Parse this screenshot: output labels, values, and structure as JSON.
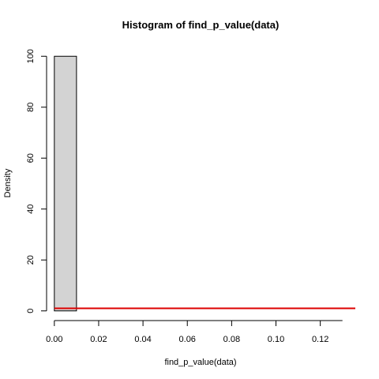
{
  "chart_data": {
    "type": "bar",
    "title": "Histogram of find_p_value(data)",
    "xlabel": "find_p_value(data)",
    "ylabel": "Density",
    "xlim": [
      -0.0035,
      0.1358
    ],
    "ylim": [
      -3.8,
      103.8
    ],
    "x_axis_range": [
      0.0,
      0.13
    ],
    "y_axis_range": [
      0,
      100
    ],
    "x_ticks": [
      "0.00",
      "0.02",
      "0.04",
      "0.06",
      "0.08",
      "0.10",
      "0.12"
    ],
    "x_tick_values": [
      0.0,
      0.02,
      0.04,
      0.06,
      0.08,
      0.1,
      0.12
    ],
    "y_ticks": [
      "0",
      "20",
      "40",
      "60",
      "80",
      "100"
    ],
    "y_tick_values": [
      0,
      20,
      40,
      60,
      80,
      100
    ],
    "bins": [
      {
        "x0": 0.0,
        "x1": 0.01,
        "value": 100
      }
    ],
    "reference_line": {
      "y": 1,
      "color": "#dd0000"
    },
    "bar_fill": "#d3d3d3",
    "bar_stroke": "#000000",
    "grid": false
  }
}
